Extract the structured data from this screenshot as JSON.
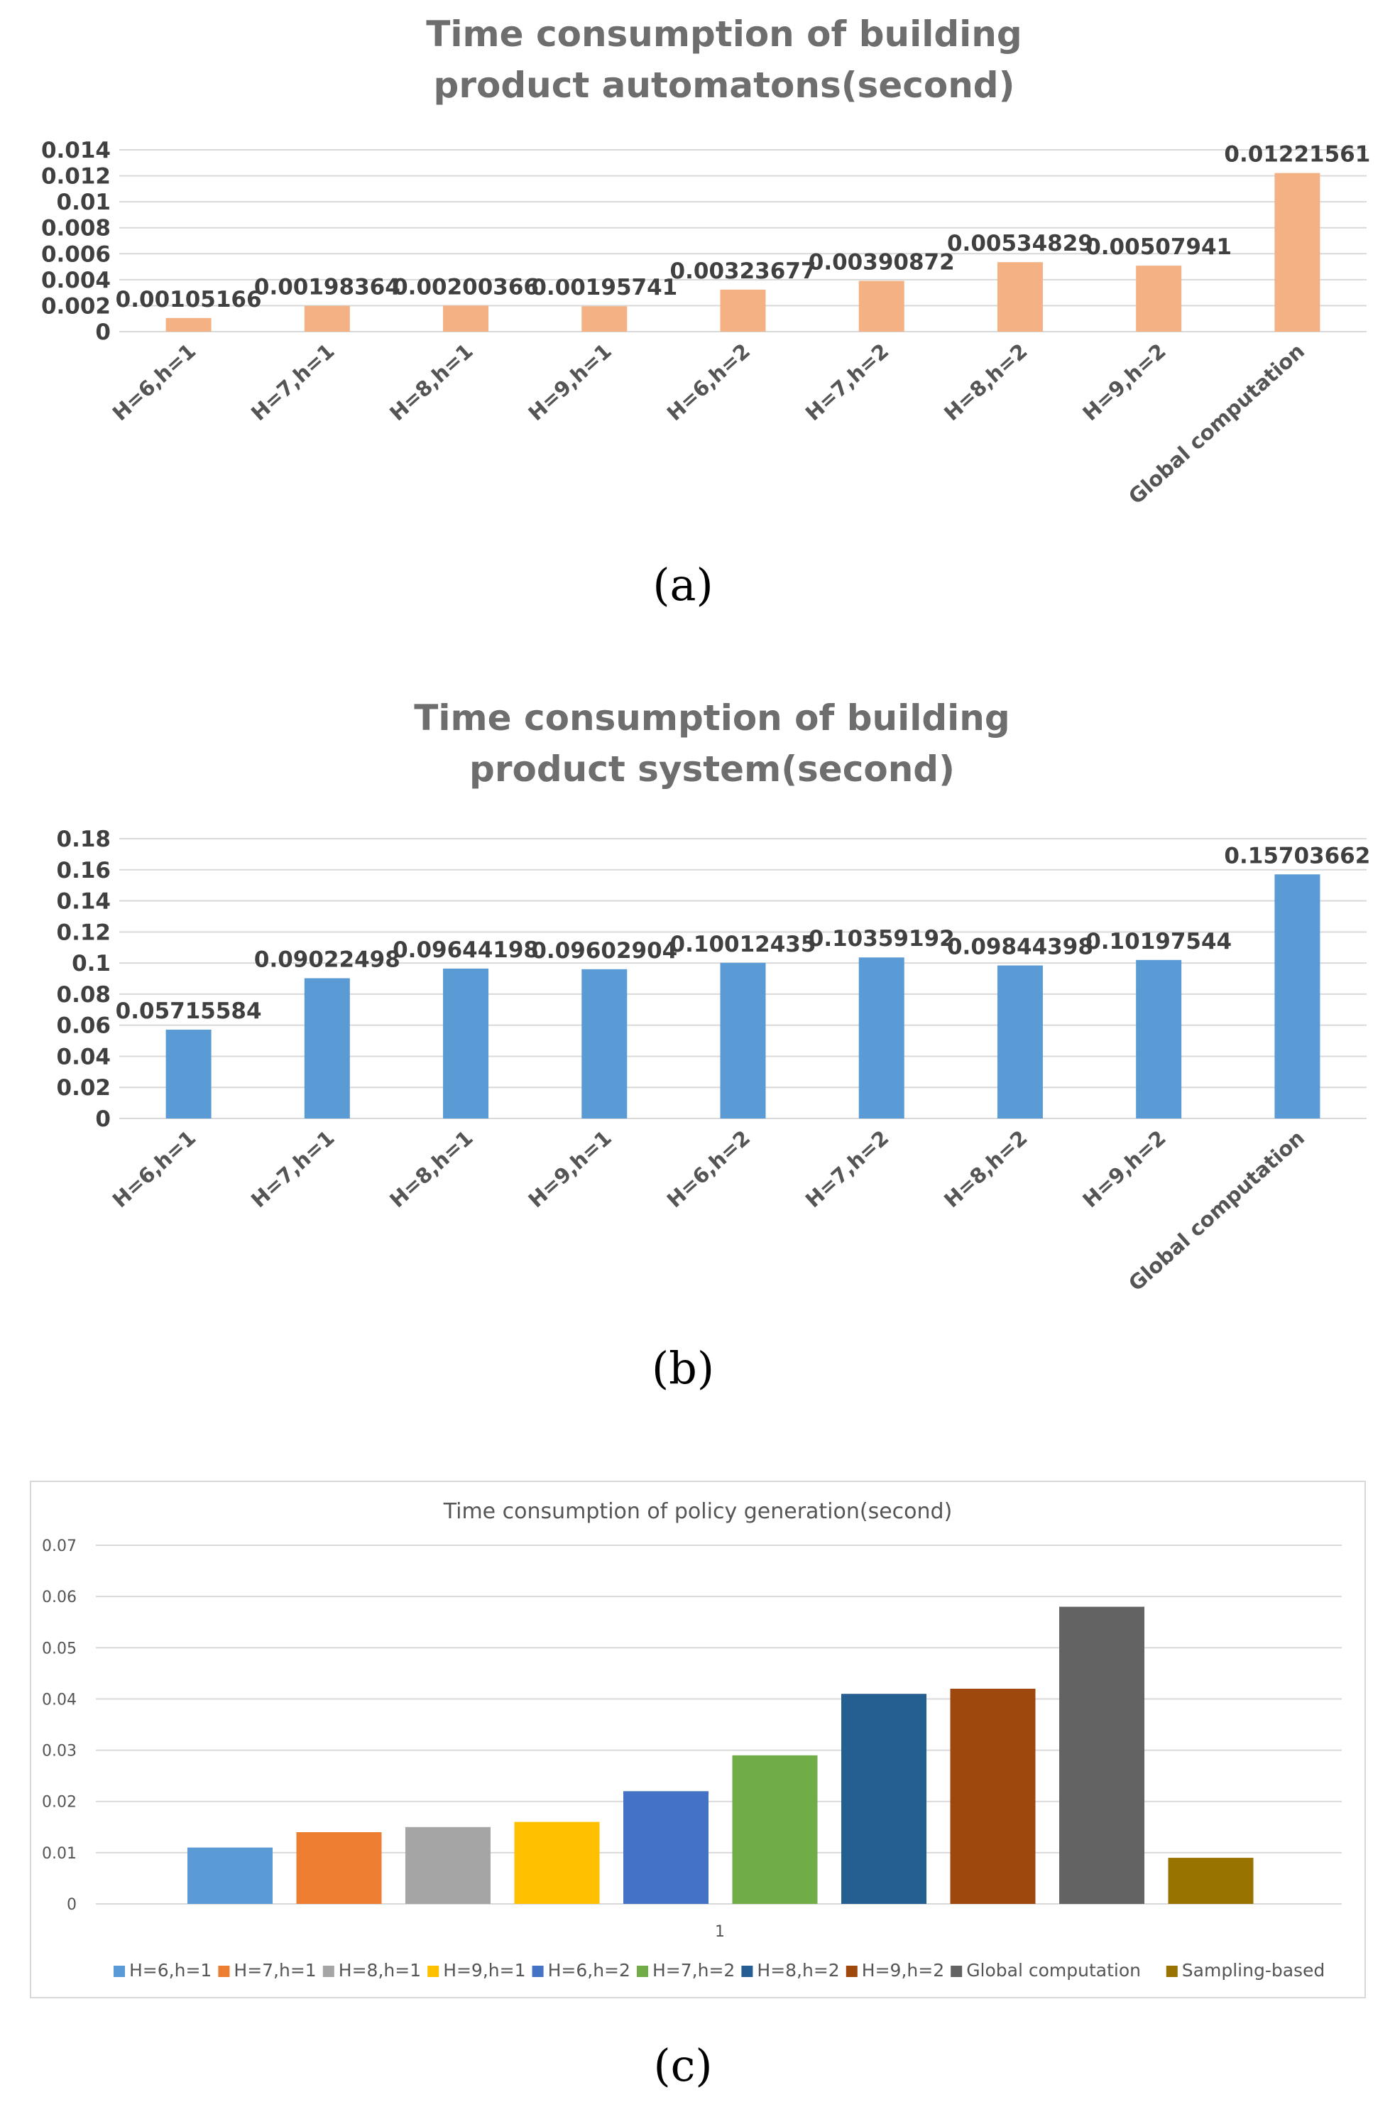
{
  "chart_data": [
    {
      "type": "bar",
      "title_lines": [
        "Time consumption of building",
        "product automatons(second)"
      ],
      "categories": [
        "H=6,h=1",
        "H=7,h=1",
        "H=8,h=1",
        "H=9,h=1",
        "H=6,h=2",
        "H=7,h=2",
        "H=8,h=2",
        "H=9,h=2",
        "Global computation"
      ],
      "values": [
        0.00105166,
        0.00198364,
        0.00200366,
        0.00195741,
        0.00323677,
        0.00390872,
        0.00534829,
        0.00507941,
        0.01221561
      ],
      "value_labels": [
        "0.00105166",
        "0.00198364",
        "0.00200366",
        "0.00195741",
        "0.00323677",
        "0.00390872",
        "0.00534829",
        "0.00507941",
        "0.01221561"
      ],
      "yticks": [
        "0",
        "0.002",
        "0.004",
        "0.006",
        "0.008",
        "0.01",
        "0.012",
        "0.014"
      ],
      "ylim": [
        0,
        0.014
      ],
      "bar_color": "#f4b183",
      "caption": "(a)"
    },
    {
      "type": "bar",
      "title_lines": [
        "Time consumption of building",
        "product system(second)"
      ],
      "categories": [
        "H=6,h=1",
        "H=7,h=1",
        "H=8,h=1",
        "H=9,h=1",
        "H=6,h=2",
        "H=7,h=2",
        "H=8,h=2",
        "H=9,h=2",
        "Global computation"
      ],
      "values": [
        0.05715584,
        0.09022498,
        0.09644198,
        0.09602904,
        0.10012435,
        0.10359192,
        0.09844398,
        0.10197544,
        0.15703662
      ],
      "value_labels": [
        "0.05715584",
        "0.09022498",
        "0.09644198",
        "0.09602904",
        "0.10012435",
        "0.10359192",
        "0.09844398",
        "0.10197544",
        "0.15703662"
      ],
      "yticks": [
        "0",
        "0.02",
        "0.04",
        "0.06",
        "0.08",
        "0.1",
        "0.12",
        "0.14",
        "0.16",
        "0.18"
      ],
      "ylim": [
        0,
        0.18
      ],
      "bar_color": "#5b9bd5",
      "caption": "(b)"
    },
    {
      "type": "bar",
      "title": "Time consumption of policy generation(second)",
      "x_category": "1",
      "series": [
        {
          "name": "H=6,h=1",
          "value": 0.011,
          "color": "#5b9bd5"
        },
        {
          "name": "H=7,h=1",
          "value": 0.014,
          "color": "#ed7d31"
        },
        {
          "name": "H=8,h=1",
          "value": 0.015,
          "color": "#a5a5a5"
        },
        {
          "name": "H=9,h=1",
          "value": 0.016,
          "color": "#ffc000"
        },
        {
          "name": "H=6,h=2",
          "value": 0.022,
          "color": "#4472c4"
        },
        {
          "name": "H=7,h=2",
          "value": 0.029,
          "color": "#70ad47"
        },
        {
          "name": "H=8,h=2",
          "value": 0.041,
          "color": "#255e91"
        },
        {
          "name": "H=9,h=2",
          "value": 0.042,
          "color": "#9e480e"
        },
        {
          "name": "Global computation",
          "value": 0.058,
          "color": "#636363"
        },
        {
          "name": "Sampling-based",
          "value": 0.009,
          "color": "#997300"
        }
      ],
      "yticks": [
        "0",
        "0.01",
        "0.02",
        "0.03",
        "0.04",
        "0.05",
        "0.06",
        "0.07"
      ],
      "ylim": [
        0,
        0.07
      ],
      "legend_position": "bottom",
      "caption": "(c)"
    }
  ]
}
